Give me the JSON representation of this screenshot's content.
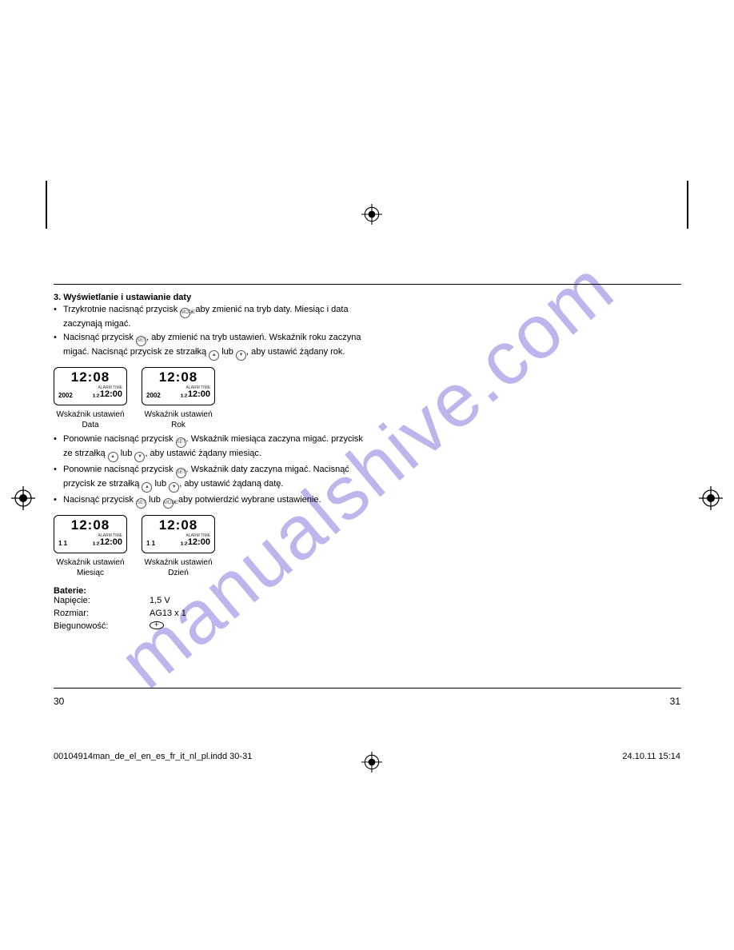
{
  "watermark": "manualshive.com",
  "section": {
    "title": "3. Wyświetlanie i ustawianie daty",
    "bullets1": [
      "Trzykrotnie nacisnąć przycisk {MODE}, aby zmienić na tryb daty. Miesiąc i data zaczynają migać.",
      "Nacisnąć przycisk {SET}, aby zmienić na tryb ustawień. Wskaźnik roku zaczyna migać. Nacisnąć przycisk ze strzałką {UP} lub {DOWN}, aby ustawić żądany rok."
    ],
    "bullets2": [
      "Ponownie nacisnąć przycisk {SET}. Wskaźnik miesiąca zaczyna migać. przycisk ze strzałką {UP} lub {DOWN}, aby ustawić żądany miesiąc.",
      "Ponownie nacisnąć przycisk {SET}. Wskaźnik daty zaczyna migać. Nacisnąć przycisk ze strzałką {UP} lub {DOWN}, aby ustawić żądaną datę.",
      "Nacisnąć przycisk {SET} lub {MODE}, aby potwierdzić wybrane ustawienie."
    ]
  },
  "lcd": {
    "time": "12:08",
    "year": "2002",
    "alarm_label": "ALARM TIME",
    "alarm_time": "₁₂12:00",
    "month_date": "1   1",
    "captions": {
      "data": [
        "Wskaźnik ustawień",
        "Data"
      ],
      "rok": [
        "Wskaźnik ustawień",
        "Rok"
      ],
      "miesiac": [
        "Wskaźnik ustawień",
        "Miesiąc"
      ],
      "dzien": [
        "Wskaźnik ustawień",
        "Dzień"
      ]
    }
  },
  "battery": {
    "heading": "Baterie:",
    "rows": [
      {
        "k": "Napięcie:",
        "v": "1,5 V"
      },
      {
        "k": "Rozmiar:",
        "v": "AG13 x 1"
      },
      {
        "k": "Biegunowość:",
        "v": ""
      }
    ]
  },
  "page_left": "30",
  "page_right": "31",
  "footer_file": "00104914man_de_el_en_es_fr_it_nl_pl.indd   30-31",
  "footer_date": "24.10.11   15:14",
  "icons": {
    "MODE": "MODE",
    "SET": "SET",
    "UP": "▲",
    "DOWN": "▼"
  }
}
